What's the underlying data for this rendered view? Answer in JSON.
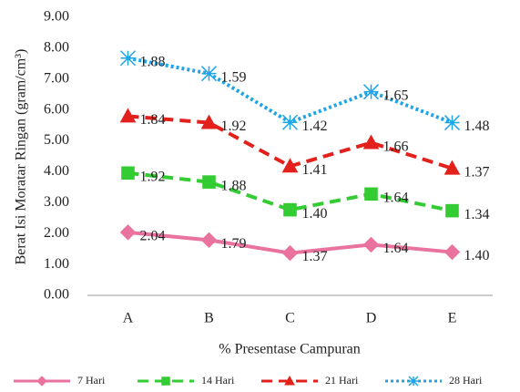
{
  "chart_data": {
    "type": "line",
    "stacked": true,
    "y_label": "Berat Isi Moratar Ringan (gram/cm³)",
    "x_label": "% Presentase Campuran",
    "categories": [
      "A",
      "B",
      "C",
      "D",
      "E"
    ],
    "ylim": [
      0,
      9
    ],
    "yticks": [
      {
        "value": 0,
        "label": "0.00"
      },
      {
        "value": 1,
        "label": "1.00"
      },
      {
        "value": 2,
        "label": "2.00"
      },
      {
        "value": 3,
        "label": "3.00"
      },
      {
        "value": 4,
        "label": "4.00"
      },
      {
        "value": 5,
        "label": "5.00"
      },
      {
        "value": 6,
        "label": "6.00"
      },
      {
        "value": 7,
        "label": "7.00"
      },
      {
        "value": 8,
        "label": "8.00"
      },
      {
        "value": 9,
        "label": "9.00"
      }
    ],
    "grid": false,
    "legend": "bottom",
    "series": [
      {
        "name": "7 Hari",
        "color": "#e9739e",
        "line_style": "solid",
        "marker": "diamond",
        "values": [
          2.04,
          1.79,
          1.37,
          1.64,
          1.4
        ],
        "value_labels": [
          "2.04",
          "1.79",
          "1.37",
          "1.64",
          "1.40"
        ]
      },
      {
        "name": "14 Hari",
        "color": "#33cc33",
        "line_style": "dashed",
        "marker": "square",
        "values": [
          1.92,
          1.88,
          1.4,
          1.64,
          1.34
        ],
        "value_labels": [
          "1.92",
          "1.88",
          "1.40",
          "1.64",
          "1.34"
        ]
      },
      {
        "name": "21 Hari",
        "color": "#e3211c",
        "line_style": "dashed",
        "marker": "triangle",
        "values": [
          1.84,
          1.92,
          1.41,
          1.66,
          1.37
        ],
        "value_labels": [
          "1.84",
          "1.92",
          "1.41",
          "1.66",
          "1.37"
        ]
      },
      {
        "name": "28 Hari",
        "color": "#1ea5e6",
        "line_style": "dotted",
        "marker": "star",
        "values": [
          1.88,
          1.59,
          1.42,
          1.65,
          1.48
        ],
        "value_labels": [
          "1.88",
          "1.59",
          "1.42",
          "1.65",
          "1.48"
        ]
      }
    ]
  }
}
